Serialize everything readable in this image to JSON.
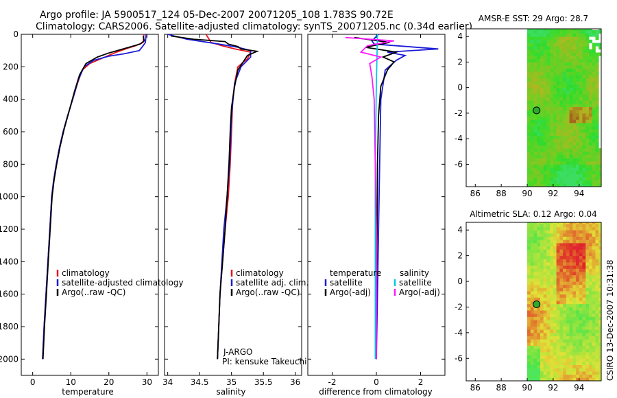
{
  "title_line1": "Argo profile: JA 5900517_124 05-Dec-2007 20071205_108 1.783S 90.72E",
  "title_line2": "Climatology: CARS2006. Satellite-adjusted climatology: synTS_20071205.nc (0.34d earlier)",
  "credit": "CSIRO 13-Dec-2007 10:31:38",
  "colors": {
    "red": "#e8121b",
    "blue": "#1b1bd8",
    "black": "#000000",
    "cyan": "#00c8ea",
    "magenta": "#ff1aff"
  },
  "chart_data": [
    {
      "type": "line",
      "xlabel": "temperature",
      "x_ticks": [
        "0",
        "10",
        "20",
        "30"
      ],
      "y_ticks": [
        "0",
        "200",
        "400",
        "600",
        "800",
        "1000",
        "1200",
        "1400",
        "1600",
        "1800",
        "2000"
      ],
      "xlim": [
        -3,
        33
      ],
      "ylim": [
        2100,
        0
      ],
      "y_reversed": true,
      "legend": [
        "climatology",
        "satellite-adjusted climatology",
        "Argo(..raw -QC)"
      ],
      "series": [
        {
          "name": "climatology",
          "color": "red",
          "points": [
            [
              29.2,
              0
            ],
            [
              29.0,
              50
            ],
            [
              27,
              70
            ],
            [
              25,
              85
            ],
            [
              22,
              110
            ],
            [
              19,
              140
            ],
            [
              15,
              180
            ],
            [
              13,
              220
            ],
            [
              11.8,
              300
            ],
            [
              10.5,
              400
            ],
            [
              9.2,
              500
            ],
            [
              8,
              600
            ],
            [
              7,
              700
            ],
            [
              6.2,
              800
            ],
            [
              5.5,
              900
            ],
            [
              5,
              1000
            ],
            [
              4.5,
              1200
            ],
            [
              4,
              1400
            ],
            [
              3.5,
              1600
            ],
            [
              3,
              1800
            ],
            [
              2.6,
              2000
            ]
          ]
        },
        {
          "name": "satellite-adjusted climatology",
          "color": "blue",
          "points": [
            [
              29.8,
              0
            ],
            [
              29.6,
              50
            ],
            [
              29,
              70
            ],
            [
              28,
              100
            ],
            [
              24,
              120
            ],
            [
              20,
              135
            ],
            [
              16,
              160
            ],
            [
              13.5,
              200
            ],
            [
              12,
              280
            ],
            [
              10.5,
              400
            ],
            [
              9.2,
              500
            ],
            [
              8,
              600
            ],
            [
              7,
              700
            ],
            [
              6.2,
              800
            ],
            [
              5.5,
              900
            ],
            [
              5,
              1000
            ],
            [
              4.5,
              1200
            ],
            [
              4,
              1400
            ],
            [
              3.5,
              1600
            ],
            [
              3,
              1800
            ],
            [
              2.6,
              2000
            ]
          ]
        },
        {
          "name": "Argo(..raw -QC)",
          "color": "black",
          "points": [
            [
              29.0,
              10
            ],
            [
              29.3,
              40
            ],
            [
              28.2,
              60
            ],
            [
              26,
              75
            ],
            [
              23,
              95
            ],
            [
              20,
              115
            ],
            [
              17,
              140
            ],
            [
              14,
              180
            ],
            [
              12.3,
              250
            ],
            [
              11,
              350
            ],
            [
              9.6,
              470
            ],
            [
              8.3,
              580
            ],
            [
              7.2,
              690
            ],
            [
              6.3,
              800
            ],
            [
              5.6,
              900
            ],
            [
              5.1,
              1000
            ],
            [
              4.6,
              1200
            ],
            [
              4.1,
              1400
            ],
            [
              3.6,
              1600
            ],
            [
              3.1,
              1800
            ],
            [
              2.7,
              2000
            ]
          ]
        }
      ]
    },
    {
      "type": "line",
      "xlabel": "salinity",
      "x_ticks": [
        "34",
        "34.5",
        "35",
        "35.5",
        "36"
      ],
      "xlim": [
        33.95,
        36.1
      ],
      "ylim": [
        2100,
        0
      ],
      "y_reversed": true,
      "legend": [
        "climatology",
        "satellite adj. clim.",
        "Argo(..raw -QC)"
      ],
      "annotation": [
        "J-ARGO",
        "PI: kensuke Takeuchi"
      ],
      "series": [
        {
          "name": "climatology",
          "color": "red",
          "points": [
            [
              34.6,
              0
            ],
            [
              34.68,
              50
            ],
            [
              34.85,
              70
            ],
            [
              35.05,
              90
            ],
            [
              35.3,
              110
            ],
            [
              35.25,
              150
            ],
            [
              35.1,
              200
            ],
            [
              35.05,
              300
            ],
            [
              35.02,
              400
            ],
            [
              35.0,
              600
            ],
            [
              34.98,
              800
            ],
            [
              34.95,
              1000
            ],
            [
              34.9,
              1200
            ],
            [
              34.86,
              1400
            ],
            [
              34.82,
              1600
            ],
            [
              34.8,
              1800
            ],
            [
              34.78,
              2000
            ]
          ]
        },
        {
          "name": "satellite adj. clim.",
          "color": "blue",
          "points": [
            [
              34.0,
              0
            ],
            [
              34.3,
              30
            ],
            [
              34.8,
              60
            ],
            [
              35.1,
              80
            ],
            [
              35.3,
              100
            ],
            [
              35.3,
              140
            ],
            [
              35.15,
              200
            ],
            [
              35.05,
              300
            ],
            [
              35.0,
              500
            ],
            [
              34.97,
              800
            ],
            [
              34.93,
              1000
            ],
            [
              34.88,
              1200
            ],
            [
              34.85,
              1400
            ],
            [
              34.82,
              1600
            ],
            [
              34.8,
              1800
            ],
            [
              34.78,
              2000
            ]
          ]
        },
        {
          "name": "Argo(..raw -QC)",
          "color": "black",
          "points": [
            [
              34.05,
              10
            ],
            [
              34.4,
              30
            ],
            [
              34.9,
              45
            ],
            [
              34.95,
              60
            ],
            [
              35.1,
              75
            ],
            [
              35.15,
              90
            ],
            [
              35.4,
              105
            ],
            [
              35.25,
              130
            ],
            [
              35.2,
              160
            ],
            [
              35.1,
              220
            ],
            [
              35.05,
              320
            ],
            [
              35.0,
              450
            ],
            [
              34.98,
              600
            ],
            [
              34.96,
              800
            ],
            [
              34.93,
              1000
            ],
            [
              34.9,
              1200
            ],
            [
              34.86,
              1400
            ],
            [
              34.82,
              1600
            ],
            [
              34.8,
              1800
            ],
            [
              34.78,
              2000
            ]
          ]
        }
      ]
    },
    {
      "type": "line",
      "xlabel": "difference from climatology",
      "x_ticks": [
        "-2",
        "0",
        "2"
      ],
      "xlim": [
        -3.1,
        3.1
      ],
      "ylim": [
        2100,
        0
      ],
      "y_reversed": true,
      "legend_left_title": "temperature",
      "legend_right_title": "salinity",
      "legend_left": [
        "satellite",
        "Argo(-adj)"
      ],
      "legend_right": [
        "satellite",
        "Argo(-adj)"
      ],
      "series": [
        {
          "name": "temperature satellite",
          "color": "blue",
          "points": [
            [
              0.1,
              0
            ],
            [
              -0.2,
              40
            ],
            [
              -0.1,
              60
            ],
            [
              2.8,
              90
            ],
            [
              0.5,
              110
            ],
            [
              1.3,
              130
            ],
            [
              0.9,
              160
            ],
            [
              0.4,
              220
            ],
            [
              0.2,
              400
            ],
            [
              0.15,
              800
            ],
            [
              0.1,
              1200
            ],
            [
              0.05,
              1600
            ],
            [
              0.0,
              2000
            ]
          ]
        },
        {
          "name": "temperature Argo(-adj)",
          "color": "black",
          "points": [
            [
              -1.0,
              20
            ],
            [
              0.6,
              50
            ],
            [
              -0.5,
              80
            ],
            [
              0.9,
              110
            ],
            [
              0.3,
              140
            ],
            [
              0.8,
              170
            ],
            [
              0.5,
              220
            ],
            [
              0.2,
              320
            ],
            [
              0.1,
              500
            ],
            [
              0.05,
              800
            ],
            [
              0.03,
              1200
            ],
            [
              0.0,
              1600
            ],
            [
              0.0,
              2000
            ]
          ]
        },
        {
          "name": "salinity satellite",
          "color": "cyan",
          "points": [
            [
              0.05,
              0
            ],
            [
              0.0,
              300
            ],
            [
              -0.05,
              800
            ],
            [
              -0.05,
              1200
            ],
            [
              -0.05,
              1600
            ],
            [
              -0.05,
              2000
            ]
          ]
        },
        {
          "name": "salinity Argo(-adj)",
          "color": "magenta",
          "points": [
            [
              -1.4,
              20
            ],
            [
              0.8,
              40
            ],
            [
              -0.4,
              70
            ],
            [
              -0.7,
              110
            ],
            [
              0.2,
              140
            ],
            [
              -0.3,
              180
            ],
            [
              -0.2,
              260
            ],
            [
              -0.1,
              400
            ],
            [
              -0.05,
              800
            ],
            [
              0.0,
              1200
            ],
            [
              0.0,
              1600
            ],
            [
              0.0,
              2000
            ]
          ]
        }
      ]
    },
    {
      "type": "heatmap",
      "title": "AMSR-E SST: 29 Argo: 28.7",
      "x_ticks": [
        "86",
        "88",
        "90",
        "92",
        "94"
      ],
      "y_ticks": [
        "4",
        "2",
        "0",
        "-2",
        "-4",
        "-6"
      ],
      "xlim": [
        85.3,
        95.7
      ],
      "ylim": [
        -7.75,
        4.6
      ],
      "marker": {
        "lon": 90.72,
        "lat": -1.783
      },
      "data_lon_start": 90
    },
    {
      "type": "heatmap",
      "title": "Altimetric SLA: 0.12 Argo: 0.04",
      "x_ticks": [
        "86",
        "88",
        "90",
        "92",
        "94"
      ],
      "y_ticks": [
        "4",
        "2",
        "0",
        "-2",
        "-4",
        "-6"
      ],
      "xlim": [
        85.3,
        95.7
      ],
      "ylim": [
        -7.75,
        4.6
      ],
      "marker": {
        "lon": 90.72,
        "lat": -1.783
      },
      "data_lon_start": 90
    }
  ]
}
